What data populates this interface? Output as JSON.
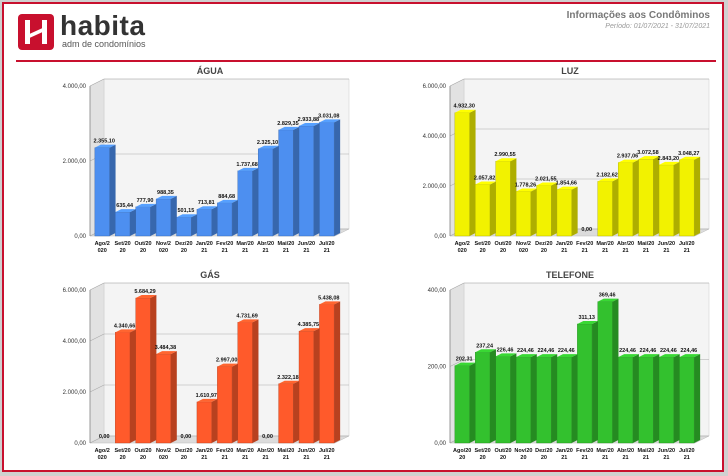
{
  "header": {
    "brand": "habita",
    "tagline": "adm de condomínios",
    "report_title": "Informações aos Condôminos",
    "period": "Período: 01/07/2021 - 31/07/2021"
  },
  "colors": {
    "accent": "#c8102e",
    "water": "#4d8ff0",
    "power": "#f2f200",
    "gas": "#ff5a2b",
    "phone": "#33c12e"
  },
  "chart_data": [
    {
      "type": "bar",
      "title": "ÁGUA",
      "categories": [
        "Ago/2\n020",
        "Set/20\n20",
        "Out/20\n20",
        "Nov/2\n020",
        "Dez/20\n20",
        "Jan/20\n21",
        "Fev/20\n21",
        "Mar/20\n21",
        "Abr/20\n21",
        "Mai/20\n21",
        "Jun/20\n21",
        "Jul/20\n21"
      ],
      "values": [
        2355.1,
        635.44,
        777.9,
        988.35,
        501.15,
        713.81,
        884.68,
        1737.68,
        2325.1,
        2829.35,
        2933.88,
        3031.08
      ],
      "value_labels": [
        "2.355,10",
        "635,44",
        "777,90",
        "988,35",
        "501,15",
        "713,81",
        "884,68",
        "1.737,68",
        "2.325,10",
        "2.829,35",
        "2.933,88",
        "3.031,08"
      ],
      "yticks": [
        "0,00",
        "2.000,00",
        "4.000,00"
      ],
      "ylim": [
        0,
        4000
      ]
    },
    {
      "type": "bar",
      "title": "LUZ",
      "categories": [
        "Ago/2\n020",
        "Set/20\n20",
        "Out/20\n20",
        "Nov/2\n020",
        "Dez/20\n20",
        "Jan/20\n21",
        "Fev/20\n21",
        "Mar/20\n21",
        "Abr/20\n21",
        "Mai/20\n21",
        "Jun/20\n21",
        "Jul/20\n21"
      ],
      "values": [
        4932.3,
        2057.82,
        2990.55,
        1778.26,
        2021.55,
        1854.66,
        0,
        2182.62,
        2937.06,
        3072.58,
        2843.2,
        3048.27
      ],
      "value_labels": [
        "4.932,30",
        "2.057,82",
        "2.990,55",
        "1.778,26",
        "2.021,55",
        "1.854,66",
        "0,00",
        "2.182,62",
        "2.937,06",
        "3.072,58",
        "2.843,20",
        "3.048,27"
      ],
      "yticks": [
        "0,00",
        "2.000,00",
        "4.000,00",
        "6.000,00"
      ],
      "ylim": [
        0,
        6000
      ]
    },
    {
      "type": "bar",
      "title": "GÁS",
      "categories": [
        "Ago/2\n020",
        "Set/20\n20",
        "Out/20\n20",
        "Nov/2\n020",
        "Dez/20\n20",
        "Jan/20\n21",
        "Fev/20\n21",
        "Mar/20\n21",
        "Abr/20\n21",
        "Mai/20\n21",
        "Jun/20\n21",
        "Jul/20\n21"
      ],
      "values": [
        0,
        4340.66,
        5684.29,
        3484.38,
        0,
        1610.97,
        2997.0,
        4731.69,
        0,
        2322.18,
        4385.75,
        5438.08
      ],
      "value_labels": [
        "0,00",
        "4.340,66",
        "5.684,29",
        "3.484,38",
        "0,00",
        "1.610,97",
        "2.997,00",
        "4.731,69",
        "0,00",
        "2.322,18",
        "4.385,75",
        "5.438,08"
      ],
      "yticks": [
        "0,00",
        "2.000,00",
        "4.000,00",
        "6.000,00"
      ],
      "ylim": [
        0,
        6000
      ]
    },
    {
      "type": "bar",
      "title": "TELEFONE",
      "categories": [
        "Ago/20\n20",
        "Set/20\n20",
        "Out/20\n20",
        "Nov/20\n20",
        "Dez/20\n20",
        "Jan/20\n21",
        "Fev/20\n21",
        "Mar/20\n21",
        "Abr/20\n21",
        "Mai/20\n21",
        "Jun/20\n21",
        "Jul/20\n21"
      ],
      "values": [
        202.31,
        237.24,
        226.46,
        224.46,
        224.46,
        224.46,
        311.13,
        369.46,
        224.46,
        224.46,
        224.46,
        224.46
      ],
      "value_labels": [
        "202,31",
        "237,24",
        "226,46",
        "224,46",
        "224,46",
        "224,46",
        "311,13",
        "369,46",
        "224,46",
        "224,46",
        "224,46",
        "224,46"
      ],
      "yticks": [
        "0,00",
        "200,00",
        "400,00"
      ],
      "ylim": [
        0,
        400
      ]
    }
  ]
}
